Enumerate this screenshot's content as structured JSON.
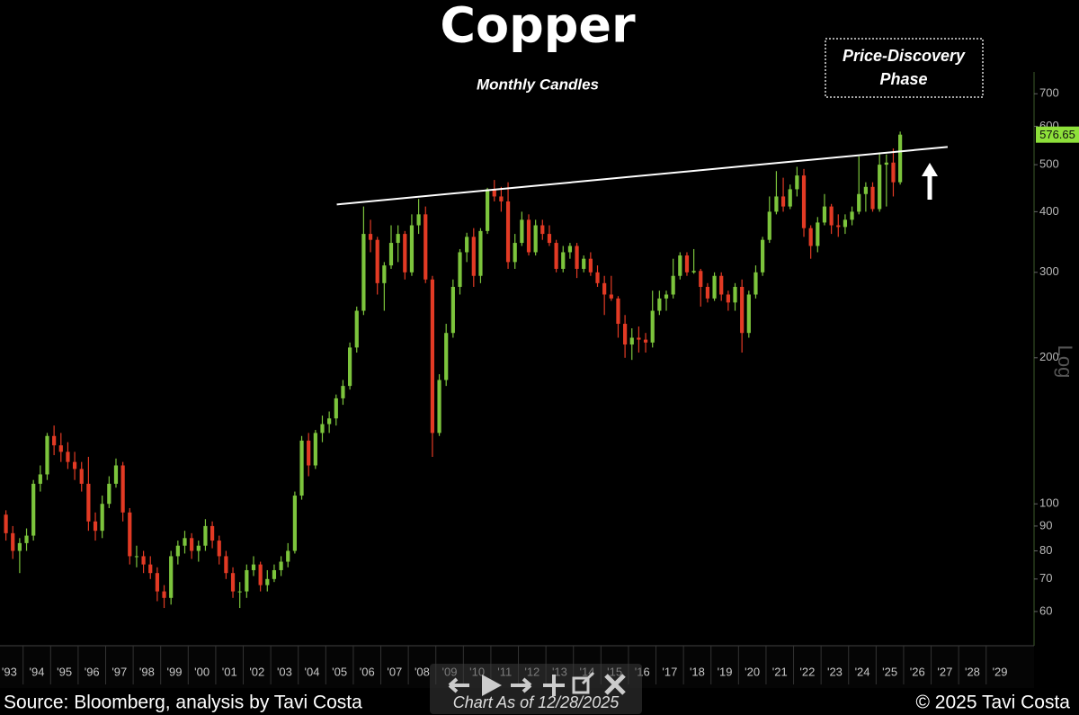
{
  "chart_data": {
    "type": "candlestick",
    "title": "Copper",
    "subtitle": "Monthly Candles",
    "annotation": [
      "Price-Discovery",
      "Phase"
    ],
    "y_label": "Log",
    "source": "Source: Bloomberg, analysis by Tavi Costa",
    "as_of": "Chart As of 12/28/2025",
    "copyright": "© 2025 Tavi Costa",
    "log_scale": true,
    "up_color": "#7cc43c",
    "down_color": "#e23a24",
    "xlim": [
      1993.16,
      2030.74
    ],
    "ylim": [
      51,
      760
    ],
    "xticks": [
      {
        "value": 1993,
        "label": "'93"
      },
      {
        "value": 1994,
        "label": "'94"
      },
      {
        "value": 1995,
        "label": "'95"
      },
      {
        "value": 1996,
        "label": "'96"
      },
      {
        "value": 1997,
        "label": "'97"
      },
      {
        "value": 1998,
        "label": "'98"
      },
      {
        "value": 1999,
        "label": "'99"
      },
      {
        "value": 2000,
        "label": "'00"
      },
      {
        "value": 2001,
        "label": "'01"
      },
      {
        "value": 2002,
        "label": "'02"
      },
      {
        "value": 2003,
        "label": "'03"
      },
      {
        "value": 2004,
        "label": "'04"
      },
      {
        "value": 2005,
        "label": "'05"
      },
      {
        "value": 2006,
        "label": "'06"
      },
      {
        "value": 2007,
        "label": "'07"
      },
      {
        "value": 2008,
        "label": "'08"
      },
      {
        "value": 2009,
        "label": "'09"
      },
      {
        "value": 2010,
        "label": "'10"
      },
      {
        "value": 2011,
        "label": "'11"
      },
      {
        "value": 2012,
        "label": "'12"
      },
      {
        "value": 2013,
        "label": "'13"
      },
      {
        "value": 2014,
        "label": "'14"
      },
      {
        "value": 2015,
        "label": "'15"
      },
      {
        "value": 2016,
        "label": "'16"
      },
      {
        "value": 2017,
        "label": "'17"
      },
      {
        "value": 2018,
        "label": "'18"
      },
      {
        "value": 2019,
        "label": "'19"
      },
      {
        "value": 2020,
        "label": "'20"
      },
      {
        "value": 2021,
        "label": "'21"
      },
      {
        "value": 2022,
        "label": "'22"
      },
      {
        "value": 2023,
        "label": "'23"
      },
      {
        "value": 2024,
        "label": "'24"
      },
      {
        "value": 2025,
        "label": "'25"
      },
      {
        "value": 2026,
        "label": "'26"
      },
      {
        "value": 2027,
        "label": "'27"
      },
      {
        "value": 2028,
        "label": "'28"
      },
      {
        "value": 2029,
        "label": "'29"
      }
    ],
    "yticks": [
      60,
      70,
      80,
      90,
      100,
      200,
      300,
      400,
      500,
      600,
      700
    ],
    "x": [
      1993.375,
      1993.625,
      1993.875,
      1994.125,
      1994.375,
      1994.625,
      1994.875,
      1995.125,
      1995.375,
      1995.625,
      1995.875,
      1996.125,
      1996.375,
      1996.625,
      1996.875,
      1997.125,
      1997.375,
      1997.625,
      1997.875,
      1998.125,
      1998.375,
      1998.625,
      1998.875,
      1999.125,
      1999.375,
      1999.625,
      1999.875,
      2000.125,
      2000.375,
      2000.625,
      2000.875,
      2001.125,
      2001.375,
      2001.625,
      2001.875,
      2002.125,
      2002.375,
      2002.625,
      2002.875,
      2003.125,
      2003.375,
      2003.625,
      2003.875,
      2004.125,
      2004.375,
      2004.625,
      2004.875,
      2005.125,
      2005.375,
      2005.625,
      2005.875,
      2006.125,
      2006.375,
      2006.625,
      2006.875,
      2007.125,
      2007.375,
      2007.625,
      2007.875,
      2008.125,
      2008.375,
      2008.625,
      2008.875,
      2009.125,
      2009.375,
      2009.625,
      2009.875,
      2010.125,
      2010.375,
      2010.625,
      2010.875,
      2011.125,
      2011.375,
      2011.625,
      2011.875,
      2012.125,
      2012.375,
      2012.625,
      2012.875,
      2013.125,
      2013.375,
      2013.625,
      2013.875,
      2014.125,
      2014.375,
      2014.625,
      2014.875,
      2015.125,
      2015.375,
      2015.625,
      2015.875,
      2016.125,
      2016.375,
      2016.625,
      2016.875,
      2017.125,
      2017.375,
      2017.625,
      2017.875,
      2018.125,
      2018.375,
      2018.625,
      2018.875,
      2019.125,
      2019.375,
      2019.625,
      2019.875,
      2020.125,
      2020.375,
      2020.625,
      2020.875,
      2021.125,
      2021.375,
      2021.625,
      2021.875,
      2022.125,
      2022.375,
      2022.625,
      2022.875,
      2023.125,
      2023.375,
      2023.625,
      2023.875,
      2024.125,
      2024.375,
      2024.625,
      2024.875,
      2025.125,
      2025.375,
      2025.625,
      2025.875
    ],
    "open": [
      95,
      87,
      80,
      83,
      86,
      110,
      115,
      138,
      132,
      128,
      122,
      118,
      110,
      92,
      88,
      100,
      110,
      120,
      96,
      78,
      78,
      75,
      72,
      66,
      64,
      78,
      82,
      85,
      80,
      82,
      90,
      84,
      78,
      72,
      66,
      66,
      73,
      75,
      68,
      70,
      73,
      76,
      80,
      104,
      135,
      120,
      140,
      146,
      150,
      165,
      175,
      210,
      250,
      360,
      350,
      285,
      310,
      345,
      360,
      300,
      375,
      395,
      290,
      140,
      180,
      225,
      280,
      330,
      355,
      295,
      365,
      445,
      430,
      420,
      315,
      345,
      385,
      330,
      375,
      360,
      345,
      305,
      330,
      340,
      305,
      320,
      300,
      285,
      270,
      265,
      235,
      213,
      220,
      218,
      215,
      250,
      265,
      270,
      295,
      325,
      300,
      302,
      280,
      265,
      295,
      270,
      260,
      280,
      225,
      270,
      300,
      350,
      400,
      430,
      410,
      445,
      475,
      370,
      340,
      380,
      410,
      375,
      372,
      385,
      400,
      435,
      450,
      405,
      500,
      505,
      460
    ],
    "high": [
      97,
      90,
      85,
      89,
      112,
      120,
      140,
      145,
      140,
      134,
      128,
      122,
      125,
      96,
      104,
      114,
      124,
      122,
      98,
      82,
      80,
      78,
      74,
      68,
      80,
      84,
      88,
      87,
      84,
      93,
      92,
      86,
      80,
      74,
      69,
      75,
      78,
      76,
      73,
      75,
      78,
      83,
      106,
      138,
      140,
      142,
      152,
      155,
      168,
      180,
      215,
      255,
      410,
      385,
      355,
      315,
      375,
      375,
      365,
      395,
      425,
      410,
      295,
      185,
      235,
      290,
      335,
      362,
      370,
      370,
      448,
      465,
      450,
      460,
      360,
      400,
      395,
      385,
      385,
      375,
      350,
      340,
      345,
      345,
      325,
      330,
      310,
      295,
      295,
      268,
      245,
      230,
      232,
      225,
      275,
      275,
      275,
      320,
      330,
      330,
      335,
      305,
      285,
      300,
      300,
      275,
      285,
      290,
      275,
      310,
      355,
      430,
      485,
      470,
      455,
      495,
      490,
      375,
      390,
      435,
      415,
      395,
      395,
      410,
      520,
      460,
      460,
      530,
      525,
      540,
      585
    ],
    "low": [
      84,
      77,
      72,
      80,
      84,
      106,
      112,
      126,
      122,
      118,
      112,
      106,
      88,
      84,
      85,
      98,
      108,
      92,
      75,
      74,
      72,
      70,
      63,
      61,
      62,
      75,
      79,
      77,
      76,
      80,
      81,
      75,
      70,
      64,
      61,
      64,
      71,
      66,
      66,
      69,
      71,
      74,
      79,
      102,
      114,
      118,
      134,
      140,
      145,
      160,
      172,
      205,
      245,
      330,
      270,
      250,
      305,
      315,
      290,
      295,
      360,
      285,
      125,
      138,
      175,
      220,
      270,
      315,
      280,
      285,
      360,
      420,
      400,
      305,
      305,
      340,
      325,
      325,
      350,
      340,
      300,
      300,
      320,
      292,
      300,
      295,
      280,
      245,
      262,
      220,
      200,
      198,
      205,
      205,
      210,
      245,
      250,
      265,
      290,
      295,
      298,
      255,
      260,
      262,
      262,
      250,
      250,
      205,
      220,
      265,
      295,
      345,
      395,
      400,
      405,
      430,
      355,
      320,
      330,
      375,
      360,
      355,
      360,
      375,
      395,
      400,
      400,
      400,
      410,
      430,
      455
    ],
    "close": [
      87,
      80,
      83,
      86,
      110,
      115,
      138,
      132,
      128,
      122,
      118,
      110,
      92,
      88,
      100,
      110,
      120,
      96,
      78,
      78,
      75,
      72,
      66,
      64,
      78,
      82,
      85,
      80,
      82,
      90,
      84,
      78,
      72,
      66,
      66,
      73,
      75,
      68,
      70,
      73,
      76,
      80,
      104,
      135,
      120,
      140,
      146,
      150,
      165,
      175,
      210,
      250,
      360,
      350,
      285,
      310,
      345,
      360,
      300,
      375,
      395,
      290,
      140,
      180,
      225,
      280,
      330,
      355,
      295,
      365,
      445,
      430,
      420,
      315,
      345,
      385,
      330,
      375,
      360,
      345,
      305,
      330,
      340,
      305,
      320,
      300,
      285,
      270,
      265,
      235,
      213,
      220,
      218,
      215,
      250,
      265,
      270,
      295,
      325,
      300,
      302,
      280,
      265,
      295,
      270,
      260,
      280,
      225,
      270,
      300,
      350,
      400,
      430,
      410,
      445,
      475,
      370,
      340,
      380,
      410,
      375,
      372,
      385,
      400,
      435,
      450,
      405,
      500,
      505,
      460,
      576.65
    ],
    "last_price_color": "#8ee03a",
    "trendline": {
      "x": [
        2005.4,
        2027.6
      ],
      "values": [
        414,
        544
      ],
      "color": "#ffffff"
    }
  }
}
